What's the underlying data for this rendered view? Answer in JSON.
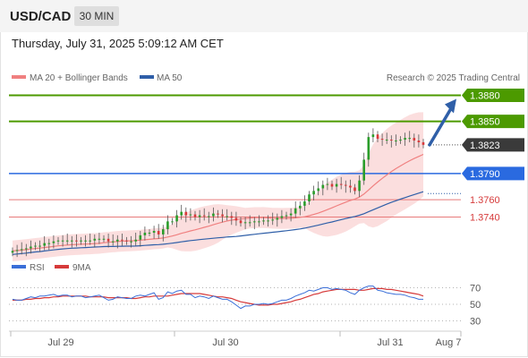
{
  "header": {
    "symbol": "USD/CAD",
    "timeframe": "30 MIN",
    "datetime": "Thursday, July 31, 2025 5:09:12 AM CET"
  },
  "legend": {
    "ma20_label": "MA 20 + Bollinger Bands",
    "ma50_label": "MA 50",
    "credit": "Research © 2025 Trading Central"
  },
  "rsi_legend": {
    "rsi_label": "RSI",
    "ma_label": "9MA"
  },
  "colors": {
    "up": "#2a9d2a",
    "down": "#d9383a",
    "ma20": "#f08080",
    "ma50": "#2f5fa8",
    "band": "#f9d3d3",
    "target": "#4c9a00",
    "pivot": "#2a6ae0",
    "support": "#e87a7a",
    "arrow": "#2f5fa8",
    "rsi": "#3a6fd8",
    "rsi_ma": "#d63a3a"
  },
  "chart_data": [
    {
      "type": "line",
      "description_type": "candlestick",
      "title": "USD/CAD",
      "x_ticks": [
        "Jul 29",
        "Jul 30",
        "Jul 31",
        "Aug 7"
      ],
      "ylim": [
        1.371,
        1.3895
      ],
      "closes": [
        1.3701,
        1.3702,
        1.3703,
        1.3704,
        1.3706,
        1.3707,
        1.3707,
        1.371,
        1.371,
        1.3712,
        1.3713,
        1.3713,
        1.3713,
        1.3713,
        1.3712,
        1.3713,
        1.3713,
        1.3713,
        1.3715,
        1.3715,
        1.3715,
        1.3712,
        1.3712,
        1.3714,
        1.3713,
        1.3712,
        1.3712,
        1.3714,
        1.3719,
        1.3722,
        1.3722,
        1.3724,
        1.372,
        1.3726,
        1.3735,
        1.3735,
        1.3742,
        1.3746,
        1.3742,
        1.3743,
        1.374,
        1.3742,
        1.3741,
        1.3741,
        1.3744,
        1.3743,
        1.3741,
        1.3741,
        1.3739,
        1.3736,
        1.3733,
        1.3734,
        1.3734,
        1.3735,
        1.3735,
        1.3736,
        1.3736,
        1.3737,
        1.3739,
        1.3741,
        1.3742,
        1.3744,
        1.375,
        1.3753,
        1.3758,
        1.3766,
        1.377,
        1.3773,
        1.3777,
        1.3778,
        1.3775,
        1.3778,
        1.3777,
        1.3776,
        1.3774,
        1.377,
        1.3782,
        1.3806,
        1.3832,
        1.3835,
        1.383,
        1.3829,
        1.3829,
        1.3828,
        1.3828,
        1.3829,
        1.3831,
        1.3831,
        1.3828,
        1.3826,
        1.3823
      ],
      "levels": {
        "target_2": 1.388,
        "target_1": 1.385,
        "last": 1.3823,
        "pivot": 1.379,
        "support_1": 1.376,
        "support_2": 1.374
      },
      "level_labels": [
        "1.3880",
        "1.3850",
        "1.3823",
        "1.3790",
        "1.3760",
        "1.3740"
      ]
    },
    {
      "type": "line",
      "title": "RSI",
      "ylim": [
        30,
        70
      ],
      "y_ticks": [
        "70",
        "50",
        "30"
      ],
      "series": [
        {
          "name": "RSI",
          "values": [
            56,
            55,
            55,
            57,
            59,
            58,
            60,
            60,
            61,
            62,
            60,
            61,
            61,
            59,
            60,
            60,
            58,
            59,
            60,
            61,
            58,
            55,
            56,
            59,
            58,
            57,
            57,
            60,
            61,
            60,
            62,
            64,
            56,
            58,
            65,
            63,
            66,
            67,
            62,
            62,
            58,
            60,
            59,
            57,
            60,
            58,
            56,
            56,
            53,
            49,
            45,
            48,
            48,
            50,
            50,
            51,
            50,
            51,
            53,
            55,
            55,
            57,
            60,
            62,
            64,
            67,
            66,
            68,
            70,
            70,
            68,
            69,
            68,
            67,
            64,
            62,
            67,
            70,
            72,
            72,
            67,
            66,
            64,
            63,
            62,
            62,
            61,
            59,
            58,
            56,
            56
          ]
        },
        {
          "name": "9MA",
          "values": [
            55,
            55,
            55,
            56,
            56,
            57,
            57,
            58,
            58,
            59,
            59,
            60,
            60,
            60,
            60,
            60,
            60,
            59,
            59,
            59,
            59,
            58,
            58,
            58,
            58,
            58,
            57,
            57,
            58,
            59,
            59,
            60,
            60,
            60,
            60,
            61,
            62,
            63,
            63,
            63,
            63,
            63,
            62,
            61,
            60,
            59,
            59,
            58,
            57,
            55,
            53,
            52,
            51,
            50,
            49,
            49,
            49,
            50,
            50,
            51,
            52,
            53,
            55,
            56,
            58,
            60,
            62,
            63,
            65,
            66,
            67,
            68,
            68,
            68,
            68,
            68,
            67,
            67,
            68,
            69,
            69,
            69,
            68,
            68,
            67,
            66,
            65,
            64,
            63,
            62,
            60
          ]
        }
      ]
    }
  ]
}
